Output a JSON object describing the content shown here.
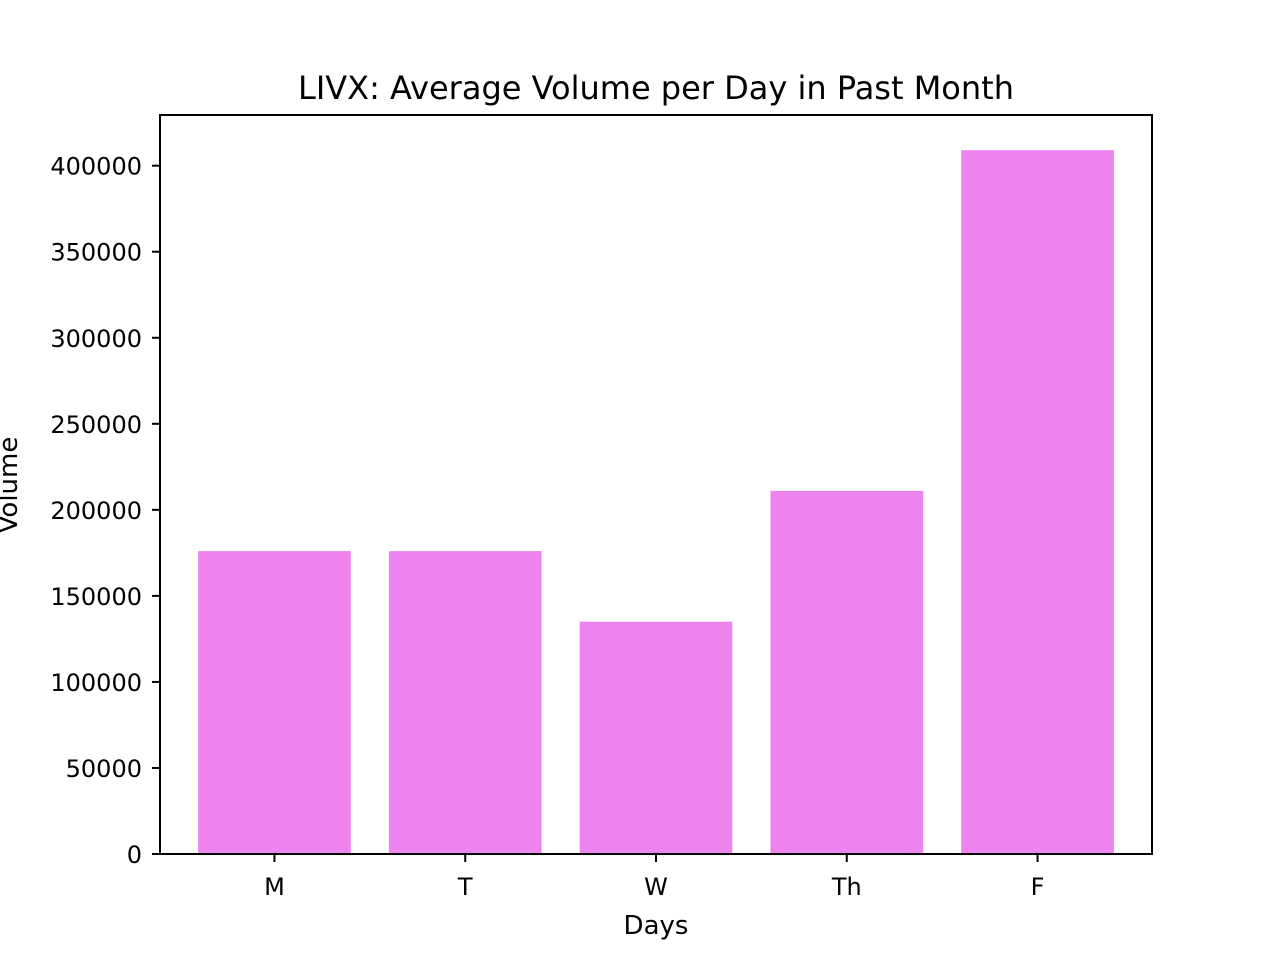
{
  "chart_data": {
    "type": "bar",
    "title": "LIVX: Average Volume per Day in Past Month",
    "xlabel": "Days",
    "ylabel": "Volume",
    "categories": [
      "M",
      "T",
      "W",
      "Th",
      "F"
    ],
    "values": [
      176000,
      176000,
      135000,
      211000,
      409000
    ],
    "ylim": [
      0,
      429450
    ],
    "yticks": [
      0,
      50000,
      100000,
      150000,
      200000,
      250000,
      300000,
      350000,
      400000
    ],
    "ytick_labels": [
      "0",
      "50000",
      "100000",
      "150000",
      "200000",
      "250000",
      "300000",
      "350000",
      "400000"
    ],
    "bar_color": "#ee82ee",
    "grid": false,
    "legend": "none"
  }
}
